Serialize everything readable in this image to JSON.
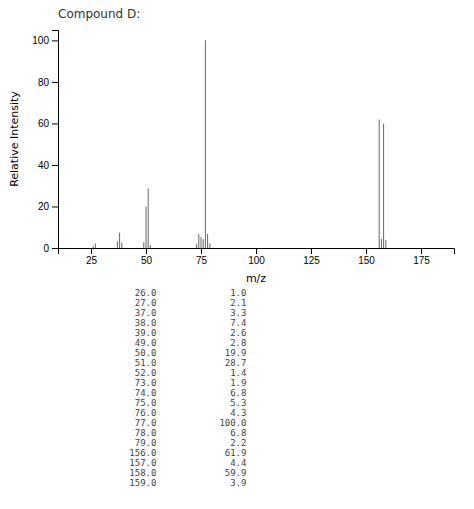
{
  "chart_data": {
    "type": "stem",
    "title": "Compound D:",
    "x_label": "m/z",
    "y_label": "Relative Intensity",
    "x": [
      26.0,
      27.0,
      37.0,
      38.0,
      39.0,
      49.0,
      50.0,
      51.0,
      52.0,
      73.0,
      74.0,
      75.0,
      76.0,
      77.0,
      78.0,
      79.0,
      156.0,
      157.0,
      158.0,
      159.0
    ],
    "values": [
      1.0,
      2.1,
      3.3,
      7.4,
      2.6,
      2.8,
      19.9,
      28.7,
      1.4,
      1.9,
      6.8,
      5.3,
      4.3,
      100.0,
      6.8,
      2.2,
      61.9,
      4.4,
      59.9,
      3.9
    ],
    "color": "#666666",
    "xlim": [
      10,
      190
    ],
    "xticks": [
      25,
      50,
      75,
      100,
      125,
      150,
      175
    ],
    "ylim": [
      0,
      105
    ],
    "yticks": [
      0,
      20,
      40,
      60,
      80,
      100
    ],
    "grid": false,
    "table": [
      [
        "26.0",
        "1.0"
      ],
      [
        "27.0",
        "2.1"
      ],
      [
        "37.0",
        "3.3"
      ],
      [
        "38.0",
        "7.4"
      ],
      [
        "39.0",
        "2.6"
      ],
      [
        "49.0",
        "2.8"
      ],
      [
        "50.0",
        "19.9"
      ],
      [
        "51.0",
        "28.7"
      ],
      [
        "52.0",
        "1.4"
      ],
      [
        "73.0",
        "1.9"
      ],
      [
        "74.0",
        "6.8"
      ],
      [
        "75.0",
        "5.3"
      ],
      [
        "76.0",
        "4.3"
      ],
      [
        "77.0",
        "100.0"
      ],
      [
        "78.0",
        "6.8"
      ],
      [
        "79.0",
        "2.2"
      ],
      [
        "156.0",
        "61.9"
      ],
      [
        "157.0",
        "4.4"
      ],
      [
        "158.0",
        "59.9"
      ],
      [
        "159.0",
        "3.9"
      ]
    ]
  }
}
